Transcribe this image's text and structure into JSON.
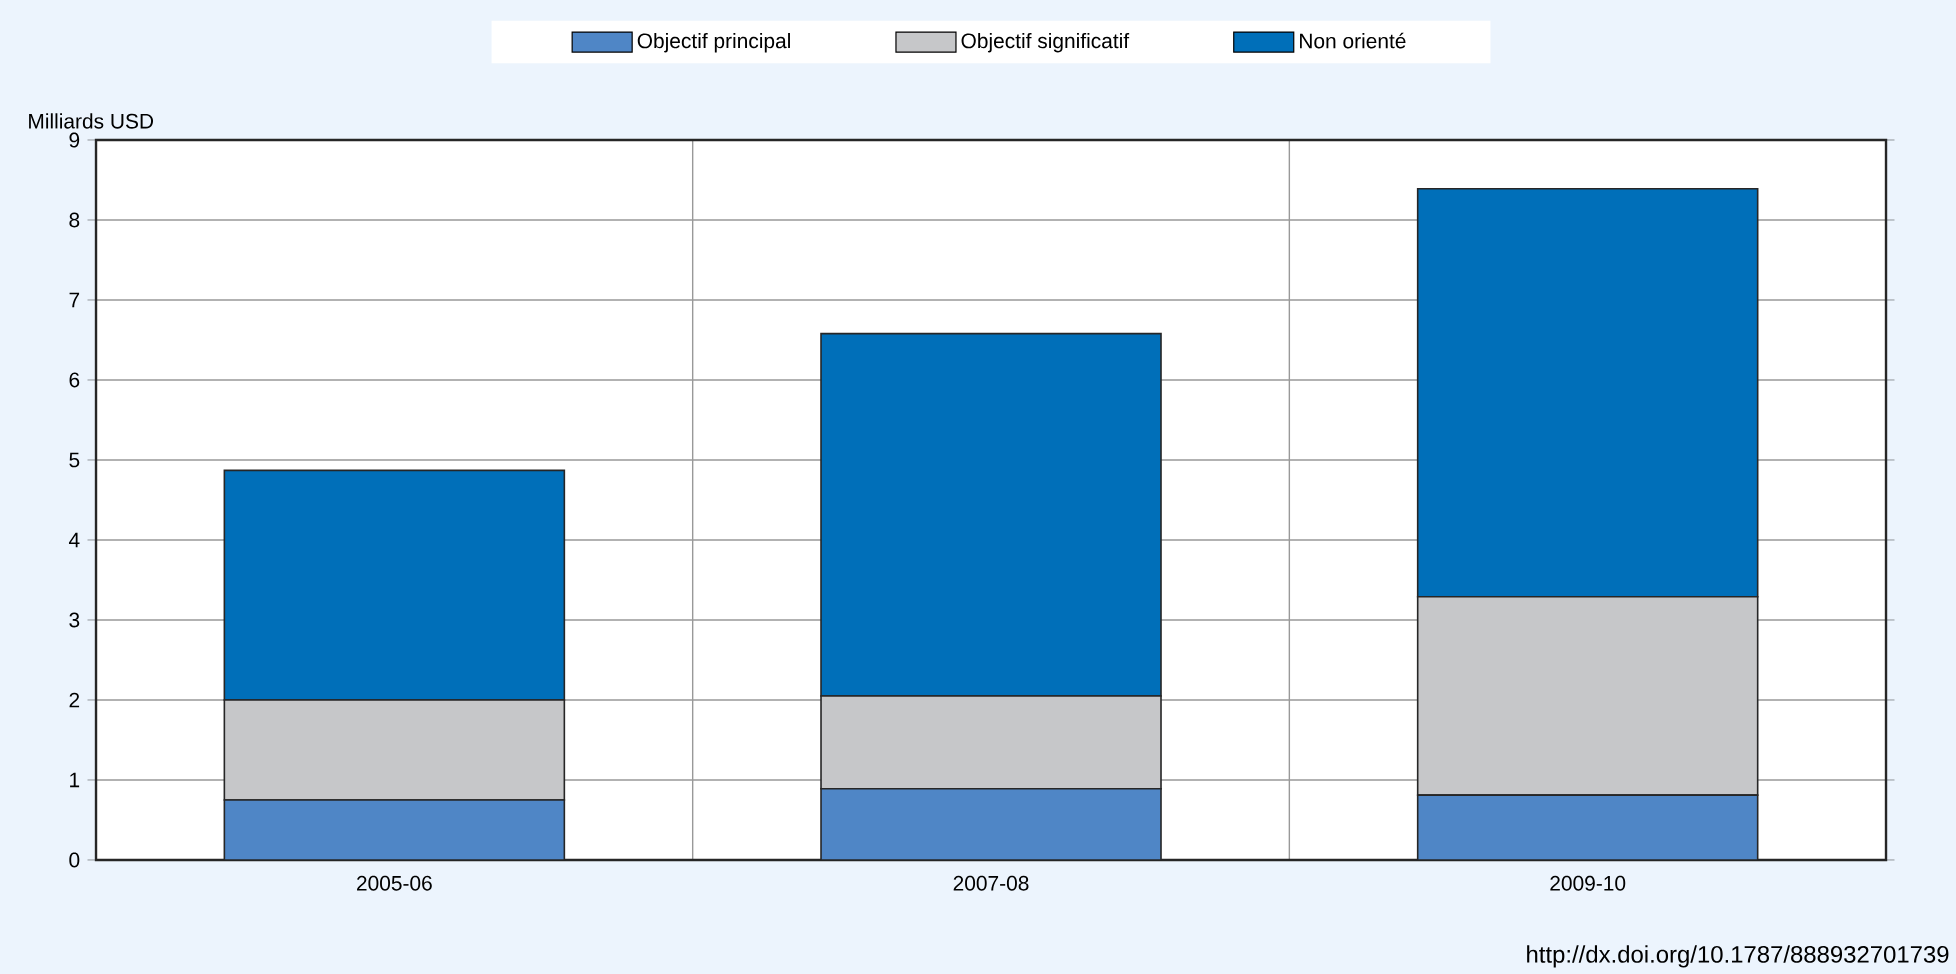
{
  "chart_data": {
    "type": "bar",
    "stacked": true,
    "ylabel": "Milliards USD",
    "categories": [
      "2005-06",
      "2007-08",
      "2009-10"
    ],
    "series": [
      {
        "name": "Objectif principal",
        "color": "#4f86c6",
        "values": [
          0.75,
          0.89,
          0.81
        ]
      },
      {
        "name": "Objectif significatif",
        "color": "#c6c7c9",
        "values": [
          1.25,
          1.16,
          2.48
        ]
      },
      {
        "name": "Non orienté",
        "color": "#006fb9",
        "values": [
          2.87,
          4.53,
          5.1
        ]
      }
    ],
    "ylim": [
      0,
      9
    ],
    "yticks": [
      0,
      1,
      2,
      3,
      4,
      5,
      6,
      7,
      8,
      9
    ],
    "grid": true,
    "legend": "top",
    "annotations": [
      "http://dx.doi.org/10.1787/888932701739"
    ]
  }
}
